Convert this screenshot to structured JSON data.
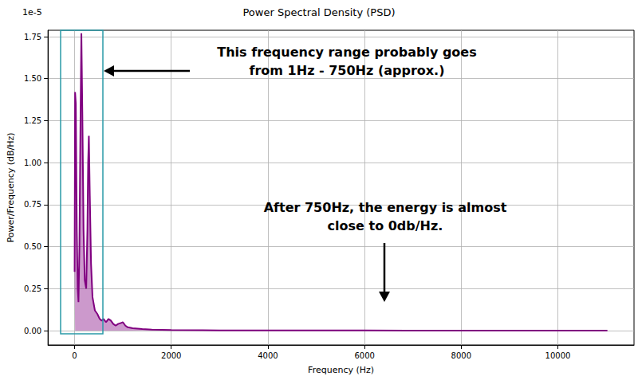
{
  "chart_data": {
    "type": "line",
    "title": "Power Spectral Density (PSD)",
    "x_label": "Frequency (Hz)",
    "y_label": "Power/Frequency (dB/Hz)",
    "y_offset_text": "1e-5",
    "color": "#800080",
    "grid": true,
    "x": [
      0,
      10,
      25,
      45,
      65,
      80,
      100,
      120,
      140,
      160,
      185,
      210,
      240,
      265,
      280,
      295,
      315,
      340,
      370,
      420,
      470,
      520,
      560,
      600,
      650,
      700,
      750,
      800,
      850,
      900,
      950,
      1000,
      1050,
      1100,
      1200,
      1400,
      1600,
      2000,
      3000,
      4000,
      5000,
      6000,
      8000,
      10000,
      11025
    ],
    "values": [
      0.35,
      1.42,
      1.35,
      0.6,
      0.25,
      0.17,
      0.5,
      1.2,
      1.77,
      1.3,
      0.6,
      0.3,
      0.25,
      0.6,
      1.0,
      1.16,
      0.8,
      0.4,
      0.2,
      0.12,
      0.1,
      0.07,
      0.06,
      0.07,
      0.05,
      0.07,
      0.06,
      0.04,
      0.03,
      0.04,
      0.045,
      0.05,
      0.03,
      0.02,
      0.015,
      0.01,
      0.006,
      0.004,
      0.002,
      0.002,
      0.001,
      0.001,
      0.0005,
      0.0003,
      0.0002
    ],
    "xlim": [
      -551,
      11576
    ],
    "xticks": [
      0,
      2000,
      4000,
      6000,
      8000,
      10000
    ],
    "ylim": [
      -0.085,
      1.788
    ],
    "yticks": [
      {
        "value": 0,
        "label": "0.00"
      },
      0.25,
      {
        "value": 0.5,
        "label": "0.50"
      },
      0.75,
      {
        "value": 1,
        "label": "1.00"
      },
      1.25,
      {
        "value": 1.5,
        "label": "1.50"
      },
      1.75
    ],
    "annotations": [
      {
        "text": [
          "This frequency range probably goes",
          "from 1Hz - 750Hz (approx.)"
        ]
      },
      {
        "text": [
          "After 750Hz, the energy is almost",
          "close to 0db/Hz."
        ]
      }
    ]
  }
}
